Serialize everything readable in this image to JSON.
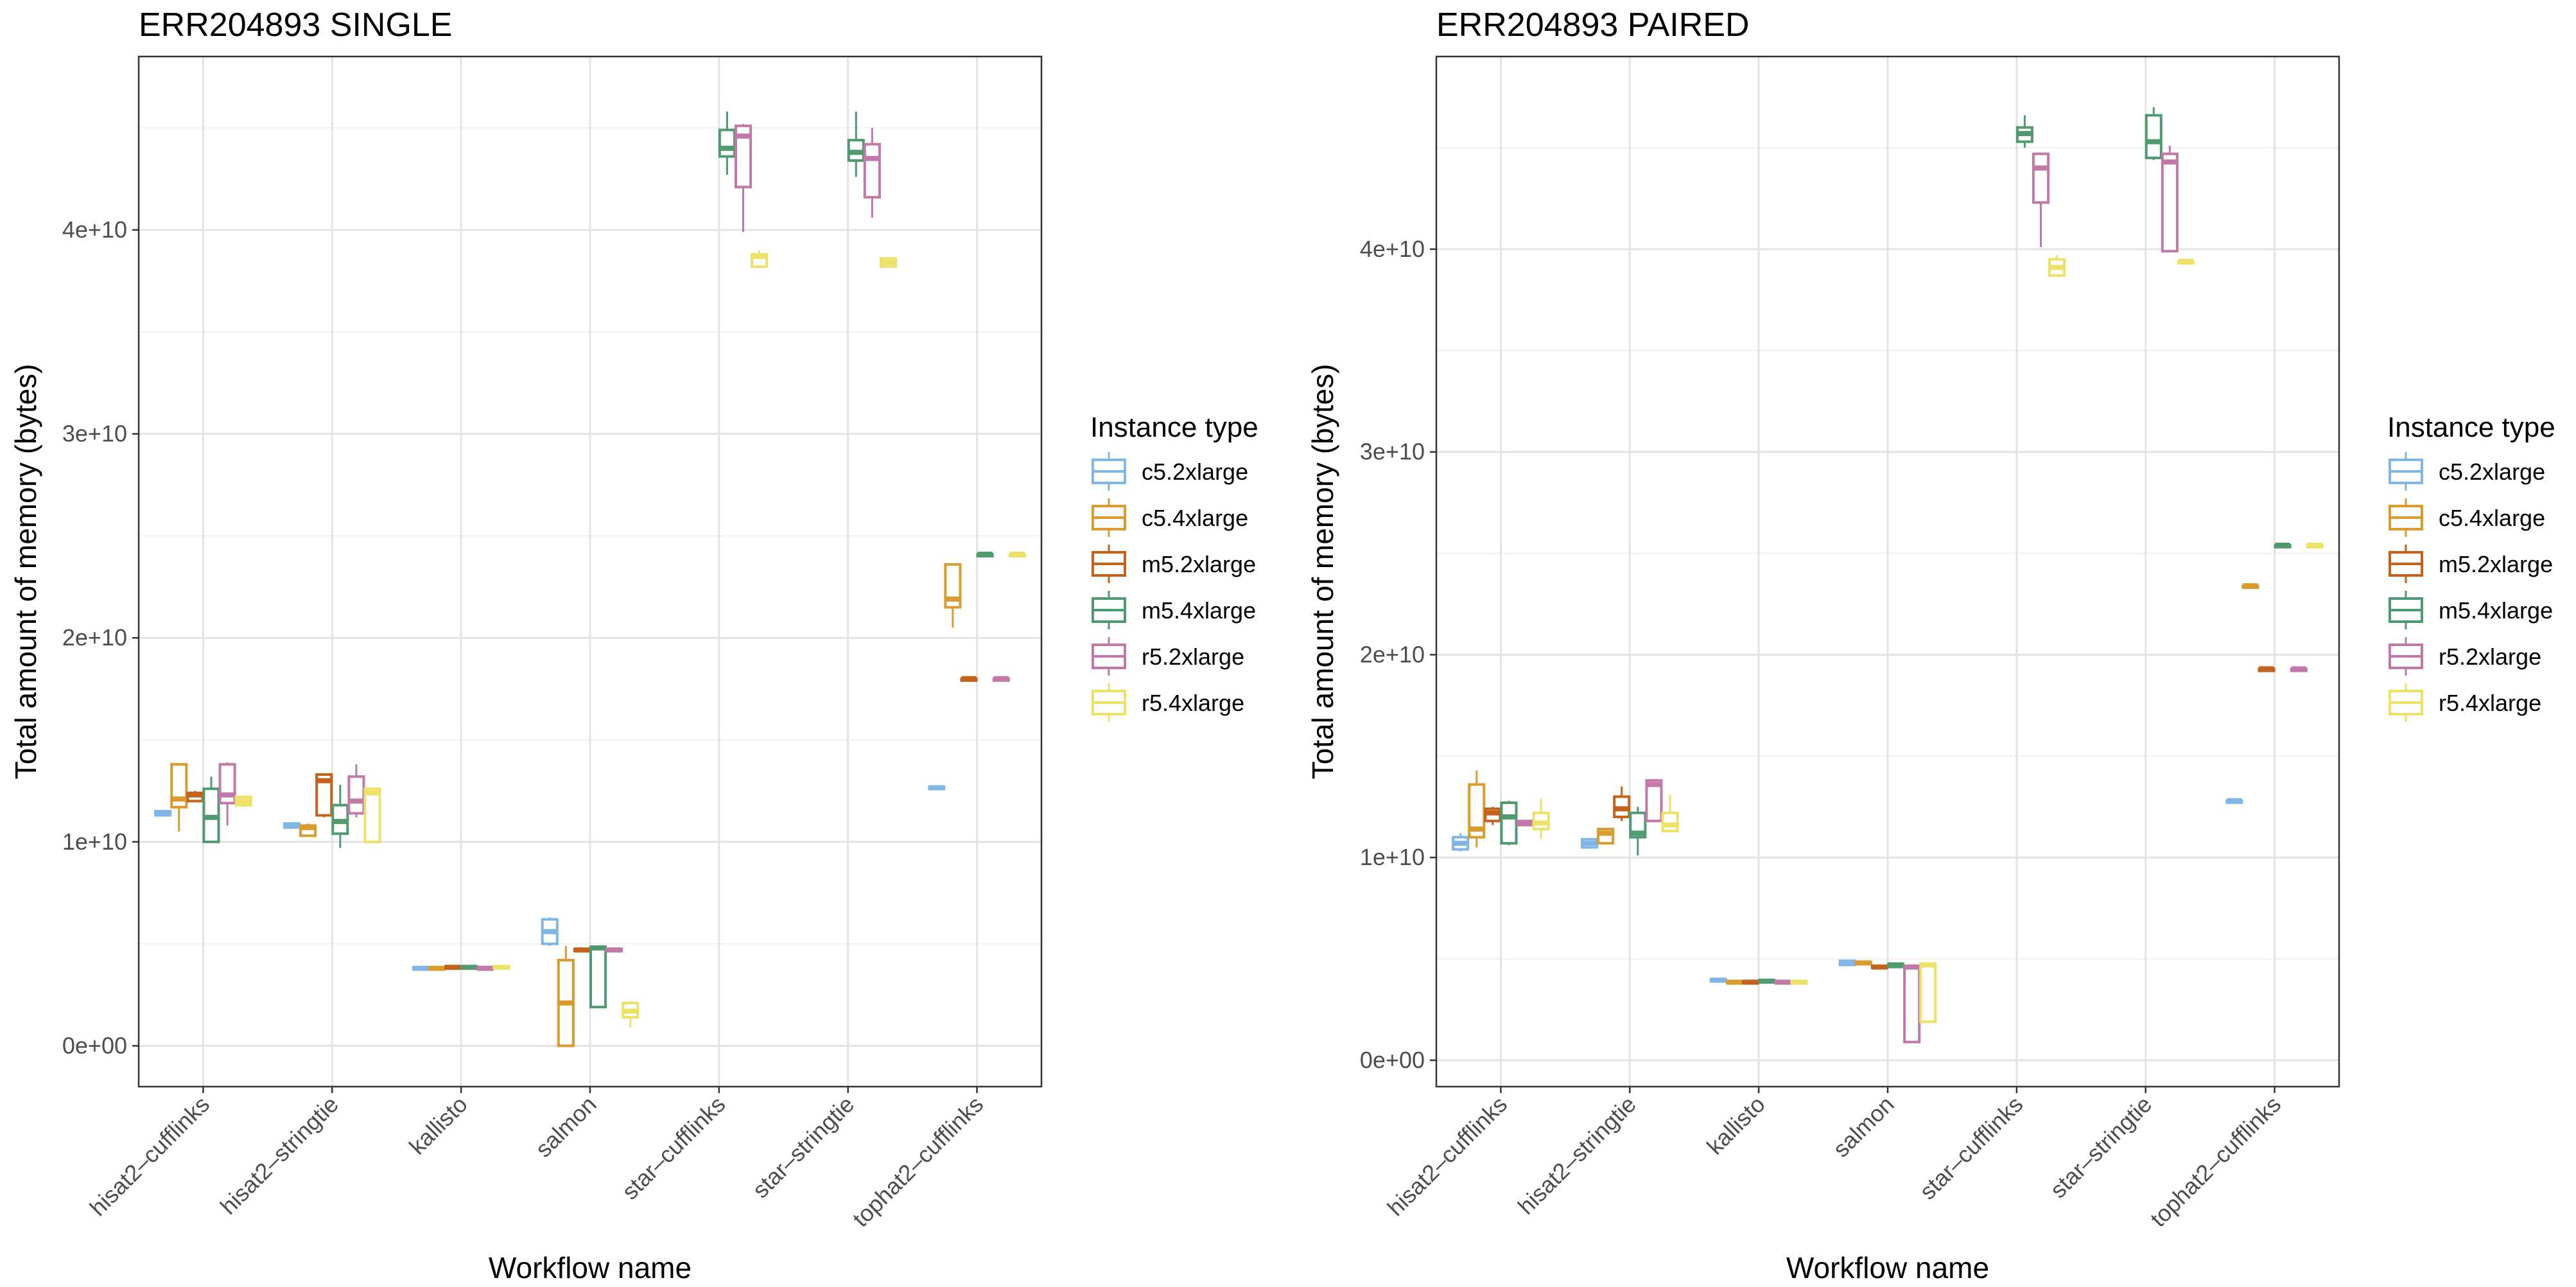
{
  "chart_data": [
    {
      "type": "box",
      "title": "ERR204893 SINGLE",
      "xlabel": "Workflow name",
      "ylabel": "Total amount of memory (bytes)",
      "ylim": [
        -2000000000.0,
        48500000000.0
      ],
      "y_ticks": [
        0,
        10000000000.0,
        20000000000.0,
        30000000000.0,
        40000000000.0
      ],
      "y_tick_labels": [
        "0e+00",
        "1e+10",
        "2e+10",
        "3e+10",
        "4e+10"
      ],
      "grid": true,
      "categories": [
        "hisat2–cufflinks",
        "hisat2–stringtie",
        "kallisto",
        "salmon",
        "star–cufflinks",
        "star–stringtie",
        "tophat2–cufflinks"
      ],
      "series": [
        {
          "name": "c5.2xlarge",
          "boxes": [
            {
              "cat": 0,
              "min": 11300000000.0,
              "q1": 11300000000.0,
              "median": 11400000000.0,
              "q3": 11500000000.0,
              "max": 11500000000.0
            },
            {
              "cat": 1,
              "min": 10700000000.0,
              "q1": 10700000000.0,
              "median": 10800000000.0,
              "q3": 10900000000.0,
              "max": 10900000000.0
            },
            {
              "cat": 2,
              "min": 3750000000.0,
              "q1": 3750000000.0,
              "median": 3800000000.0,
              "q3": 3850000000.0,
              "max": 3850000000.0
            },
            {
              "cat": 3,
              "min": 4900000000.0,
              "q1": 5000000000.0,
              "median": 5600000000.0,
              "q3": 6200000000.0,
              "max": 6300000000.0
            },
            {
              "cat": 6,
              "min": 12600000000.0,
              "q1": 12600000000.0,
              "median": 12650000000.0,
              "q3": 12700000000.0,
              "max": 12700000000.0
            }
          ]
        },
        {
          "name": "c5.4xlarge",
          "boxes": [
            {
              "cat": 0,
              "min": 10500000000.0,
              "q1": 11700000000.0,
              "median": 12100000000.0,
              "q3": 13800000000.0,
              "max": 13800000000.0
            },
            {
              "cat": 1,
              "min": 10300000000.0,
              "q1": 10300000000.0,
              "median": 10700000000.0,
              "q3": 10800000000.0,
              "max": 10900000000.0
            },
            {
              "cat": 2,
              "min": 3750000000.0,
              "q1": 3750000000.0,
              "median": 3800000000.0,
              "q3": 3850000000.0,
              "max": 3850000000.0
            },
            {
              "cat": 3,
              "min": 0,
              "q1": 0,
              "median": 2100000000.0,
              "q3": 4200000000.0,
              "max": 4900000000.0
            },
            {
              "cat": 6,
              "min": 20500000000.0,
              "q1": 21500000000.0,
              "median": 21900000000.0,
              "q3": 23600000000.0,
              "max": 23600000000.0
            }
          ]
        },
        {
          "name": "m5.2xlarge",
          "boxes": [
            {
              "cat": 0,
              "min": 12000000000.0,
              "q1": 12000000000.0,
              "median": 12300000000.0,
              "q3": 12400000000.0,
              "max": 12500000000.0
            },
            {
              "cat": 1,
              "min": 11200000000.0,
              "q1": 11300000000.0,
              "median": 13000000000.0,
              "q3": 13300000000.0,
              "max": 13300000000.0
            },
            {
              "cat": 2,
              "min": 3750000000.0,
              "q1": 3800000000.0,
              "median": 3850000000.0,
              "q3": 3900000000.0,
              "max": 3900000000.0
            },
            {
              "cat": 3,
              "min": 4650000000.0,
              "q1": 4650000000.0,
              "median": 4700000000.0,
              "q3": 4750000000.0,
              "max": 4750000000.0
            },
            {
              "cat": 6,
              "min": 18000000000.0,
              "q1": 18000000000.0,
              "median": 18000000000.0,
              "q3": 18000000000.0,
              "max": 18000000000.0
            }
          ]
        },
        {
          "name": "m5.4xlarge",
          "boxes": [
            {
              "cat": 0,
              "min": 10000000000.0,
              "q1": 10000000000.0,
              "median": 11200000000.0,
              "q3": 12600000000.0,
              "max": 13200000000.0
            },
            {
              "cat": 1,
              "min": 9700000000.0,
              "q1": 10400000000.0,
              "median": 11000000000.0,
              "q3": 11800000000.0,
              "max": 12800000000.0
            },
            {
              "cat": 2,
              "min": 3800000000.0,
              "q1": 3800000000.0,
              "median": 3850000000.0,
              "q3": 3900000000.0,
              "max": 3900000000.0
            },
            {
              "cat": 3,
              "min": 1900000000.0,
              "q1": 1900000000.0,
              "median": 4800000000.0,
              "q3": 4850000000.0,
              "max": 4850000000.0
            },
            {
              "cat": 4,
              "min": 42700000000.0,
              "q1": 43600000000.0,
              "median": 44000000000.0,
              "q3": 44900000000.0,
              "max": 45800000000.0
            },
            {
              "cat": 5,
              "min": 42600000000.0,
              "q1": 43400000000.0,
              "median": 43800000000.0,
              "q3": 44400000000.0,
              "max": 45800000000.0
            },
            {
              "cat": 6,
              "min": 24100000000.0,
              "q1": 24100000000.0,
              "median": 24100000000.0,
              "q3": 24100000000.0,
              "max": 24100000000.0
            }
          ]
        },
        {
          "name": "r5.2xlarge",
          "boxes": [
            {
              "cat": 0,
              "min": 10800000000.0,
              "q1": 11900000000.0,
              "median": 12300000000.0,
              "q3": 13800000000.0,
              "max": 13900000000.0
            },
            {
              "cat": 1,
              "min": 11200000000.0,
              "q1": 11400000000.0,
              "median": 12000000000.0,
              "q3": 13200000000.0,
              "max": 13800000000.0
            },
            {
              "cat": 2,
              "min": 3750000000.0,
              "q1": 3750000000.0,
              "median": 3800000000.0,
              "q3": 3850000000.0,
              "max": 3850000000.0
            },
            {
              "cat": 3,
              "min": 4650000000.0,
              "q1": 4650000000.0,
              "median": 4700000000.0,
              "q3": 4750000000.0,
              "max": 4750000000.0
            },
            {
              "cat": 4,
              "min": 39900000000.0,
              "q1": 42100000000.0,
              "median": 44600000000.0,
              "q3": 45100000000.0,
              "max": 45200000000.0
            },
            {
              "cat": 5,
              "min": 40600000000.0,
              "q1": 41600000000.0,
              "median": 43500000000.0,
              "q3": 44200000000.0,
              "max": 45000000000.0
            },
            {
              "cat": 6,
              "min": 18000000000.0,
              "q1": 18000000000.0,
              "median": 18000000000.0,
              "q3": 18000000000.0,
              "max": 18000000000.0
            }
          ]
        },
        {
          "name": "r5.4xlarge",
          "boxes": [
            {
              "cat": 0,
              "min": 11700000000.0,
              "q1": 11800000000.0,
              "median": 12000000000.0,
              "q3": 12200000000.0,
              "max": 12200000000.0
            },
            {
              "cat": 1,
              "min": 10000000000.0,
              "q1": 10000000000.0,
              "median": 12400000000.0,
              "q3": 12600000000.0,
              "max": 12600000000.0
            },
            {
              "cat": 2,
              "min": 3800000000.0,
              "q1": 3800000000.0,
              "median": 3850000000.0,
              "q3": 3900000000.0,
              "max": 3900000000.0
            },
            {
              "cat": 3,
              "min": 900000000.0,
              "q1": 1400000000.0,
              "median": 1700000000.0,
              "q3": 2100000000.0,
              "max": 2200000000.0
            },
            {
              "cat": 4,
              "min": 38200000000.0,
              "q1": 38200000000.0,
              "median": 38700000000.0,
              "q3": 38800000000.0,
              "max": 39000000000.0
            },
            {
              "cat": 5,
              "min": 38200000000.0,
              "q1": 38200000000.0,
              "median": 38400000000.0,
              "q3": 38600000000.0,
              "max": 38600000000.0
            },
            {
              "cat": 6,
              "min": 24100000000.0,
              "q1": 24100000000.0,
              "median": 24100000000.0,
              "q3": 24100000000.0,
              "max": 24100000000.0
            }
          ]
        }
      ]
    },
    {
      "type": "box",
      "title": "ERR204893 PAIRED",
      "xlabel": "Workflow name",
      "ylabel": "Total amount of memory (bytes)",
      "ylim": [
        -1300000000.0,
        49500000000.0
      ],
      "y_ticks": [
        0,
        10000000000.0,
        20000000000.0,
        30000000000.0,
        40000000000.0
      ],
      "y_tick_labels": [
        "0e+00",
        "1e+10",
        "2e+10",
        "3e+10",
        "4e+10"
      ],
      "grid": true,
      "categories": [
        "hisat2–cufflinks",
        "hisat2–stringtie",
        "kallisto",
        "salmon",
        "star–cufflinks",
        "star–stringtie",
        "tophat2–cufflinks"
      ],
      "series": [
        {
          "name": "c5.2xlarge",
          "boxes": [
            {
              "cat": 0,
              "min": 10300000000.0,
              "q1": 10400000000.0,
              "median": 10700000000.0,
              "q3": 11000000000.0,
              "max": 11200000000.0
            },
            {
              "cat": 1,
              "min": 10500000000.0,
              "q1": 10500000000.0,
              "median": 10700000000.0,
              "q3": 10900000000.0,
              "max": 10900000000.0
            },
            {
              "cat": 2,
              "min": 3900000000.0,
              "q1": 3900000000.0,
              "median": 3950000000.0,
              "q3": 4000000000.0,
              "max": 4000000000.0
            },
            {
              "cat": 3,
              "min": 4700000000.0,
              "q1": 4700000000.0,
              "median": 4800000000.0,
              "q3": 4900000000.0,
              "max": 4900000000.0
            },
            {
              "cat": 6,
              "min": 12800000000.0,
              "q1": 12800000000.0,
              "median": 12800000000.0,
              "q3": 12800000000.0,
              "max": 12800000000.0
            }
          ]
        },
        {
          "name": "c5.4xlarge",
          "boxes": [
            {
              "cat": 0,
              "min": 10500000000.0,
              "q1": 11000000000.0,
              "median": 11400000000.0,
              "q3": 13600000000.0,
              "max": 14300000000.0
            },
            {
              "cat": 1,
              "min": 10700000000.0,
              "q1": 10700000000.0,
              "median": 11200000000.0,
              "q3": 11400000000.0,
              "max": 11400000000.0
            },
            {
              "cat": 2,
              "min": 3800000000.0,
              "q1": 3800000000.0,
              "median": 3850000000.0,
              "q3": 3900000000.0,
              "max": 3900000000.0
            },
            {
              "cat": 3,
              "min": 4750000000.0,
              "q1": 4750000000.0,
              "median": 4800000000.0,
              "q3": 4850000000.0,
              "max": 4850000000.0
            },
            {
              "cat": 6,
              "min": 23400000000.0,
              "q1": 23400000000.0,
              "median": 23400000000.0,
              "q3": 23400000000.0,
              "max": 23400000000.0
            }
          ]
        },
        {
          "name": "m5.2xlarge",
          "boxes": [
            {
              "cat": 0,
              "min": 11600000000.0,
              "q1": 11800000000.0,
              "median": 12200000000.0,
              "q3": 12400000000.0,
              "max": 12500000000.0
            },
            {
              "cat": 1,
              "min": 11800000000.0,
              "q1": 12000000000.0,
              "median": 12400000000.0,
              "q3": 13000000000.0,
              "max": 13500000000.0
            },
            {
              "cat": 2,
              "min": 3800000000.0,
              "q1": 3800000000.0,
              "median": 3850000000.0,
              "q3": 3900000000.0,
              "max": 3900000000.0
            },
            {
              "cat": 3,
              "min": 4500000000.0,
              "q1": 4550000000.0,
              "median": 4600000000.0,
              "q3": 4650000000.0,
              "max": 4700000000.0
            },
            {
              "cat": 6,
              "min": 19300000000.0,
              "q1": 19300000000.0,
              "median": 19300000000.0,
              "q3": 19300000000.0,
              "max": 19300000000.0
            }
          ]
        },
        {
          "name": "m5.4xlarge",
          "boxes": [
            {
              "cat": 0,
              "min": 10600000000.0,
              "q1": 10700000000.0,
              "median": 12000000000.0,
              "q3": 12700000000.0,
              "max": 12800000000.0
            },
            {
              "cat": 1,
              "min": 10100000000.0,
              "q1": 11000000000.0,
              "median": 11200000000.0,
              "q3": 12200000000.0,
              "max": 12500000000.0
            },
            {
              "cat": 2,
              "min": 3850000000.0,
              "q1": 3850000000.0,
              "median": 3900000000.0,
              "q3": 3950000000.0,
              "max": 3950000000.0
            },
            {
              "cat": 3,
              "min": 4600000000.0,
              "q1": 4600000000.0,
              "median": 4700000000.0,
              "q3": 4750000000.0,
              "max": 4750000000.0
            },
            {
              "cat": 4,
              "min": 45000000000.0,
              "q1": 45300000000.0,
              "median": 45700000000.0,
              "q3": 46000000000.0,
              "max": 46600000000.0
            },
            {
              "cat": 5,
              "min": 44400000000.0,
              "q1": 44500000000.0,
              "median": 45300000000.0,
              "q3": 46600000000.0,
              "max": 47000000000.0
            },
            {
              "cat": 6,
              "min": 25400000000.0,
              "q1": 25400000000.0,
              "median": 25400000000.0,
              "q3": 25400000000.0,
              "max": 25400000000.0
            }
          ]
        },
        {
          "name": "r5.2xlarge",
          "boxes": [
            {
              "cat": 0,
              "min": 11600000000.0,
              "q1": 11600000000.0,
              "median": 11700000000.0,
              "q3": 11800000000.0,
              "max": 11800000000.0
            },
            {
              "cat": 1,
              "min": 11800000000.0,
              "q1": 11800000000.0,
              "median": 13600000000.0,
              "q3": 13800000000.0,
              "max": 13800000000.0
            },
            {
              "cat": 2,
              "min": 3800000000.0,
              "q1": 3800000000.0,
              "median": 3850000000.0,
              "q3": 3900000000.0,
              "max": 3900000000.0
            },
            {
              "cat": 3,
              "min": 900000000.0,
              "q1": 900000000.0,
              "median": 4600000000.0,
              "q3": 4650000000.0,
              "max": 4650000000.0
            },
            {
              "cat": 4,
              "min": 40100000000.0,
              "q1": 42300000000.0,
              "median": 44000000000.0,
              "q3": 44700000000.0,
              "max": 44700000000.0
            },
            {
              "cat": 5,
              "min": 39900000000.0,
              "q1": 39900000000.0,
              "median": 44300000000.0,
              "q3": 44700000000.0,
              "max": 45100000000.0
            },
            {
              "cat": 6,
              "min": 19300000000.0,
              "q1": 19300000000.0,
              "median": 19300000000.0,
              "q3": 19300000000.0,
              "max": 19300000000.0
            }
          ]
        },
        {
          "name": "r5.4xlarge",
          "boxes": [
            {
              "cat": 0,
              "min": 10900000000.0,
              "q1": 11400000000.0,
              "median": 11700000000.0,
              "q3": 12200000000.0,
              "max": 12900000000.0
            },
            {
              "cat": 1,
              "min": 11300000000.0,
              "q1": 11300000000.0,
              "median": 11600000000.0,
              "q3": 12200000000.0,
              "max": 13100000000.0
            },
            {
              "cat": 2,
              "min": 3800000000.0,
              "q1": 3800000000.0,
              "median": 3850000000.0,
              "q3": 3900000000.0,
              "max": 3900000000.0
            },
            {
              "cat": 3,
              "min": 1900000000.0,
              "q1": 1900000000.0,
              "median": 4700000000.0,
              "q3": 4750000000.0,
              "max": 4750000000.0
            },
            {
              "cat": 4,
              "min": 38700000000.0,
              "q1": 38700000000.0,
              "median": 39100000000.0,
              "q3": 39500000000.0,
              "max": 39700000000.0
            },
            {
              "cat": 5,
              "min": 39300000000.0,
              "q1": 39300000000.0,
              "median": 39400000000.0,
              "q3": 39400000000.0,
              "max": 39400000000.0
            },
            {
              "cat": 6,
              "min": 25400000000.0,
              "q1": 25400000000.0,
              "median": 25400000000.0,
              "q3": 25400000000.0,
              "max": 25400000000.0
            }
          ]
        }
      ]
    }
  ],
  "legend": {
    "title": "Instance type",
    "placement": "right",
    "items": [
      {
        "label": "c5.2xlarge",
        "color": "#7fb6e6"
      },
      {
        "label": "c5.4xlarge",
        "color": "#d99b2b"
      },
      {
        "label": "m5.2xlarge",
        "color": "#c4611a"
      },
      {
        "label": "m5.4xlarge",
        "color": "#4f9a6e"
      },
      {
        "label": "r5.2xlarge",
        "color": "#c278a9"
      },
      {
        "label": "r5.4xlarge",
        "color": "#ede166"
      }
    ]
  }
}
